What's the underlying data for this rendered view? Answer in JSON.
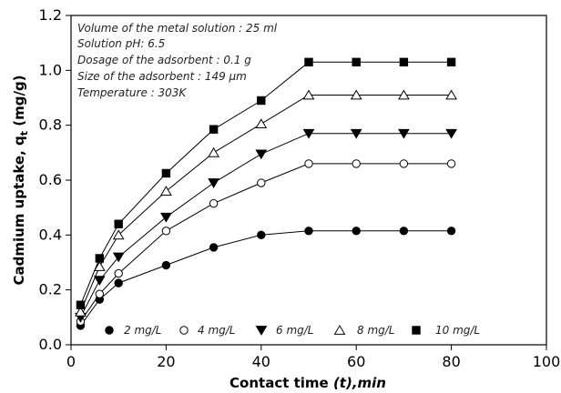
{
  "chart_data": {
    "type": "line",
    "xlabel_main": "Contact time ",
    "xlabel_italic": "(t),min",
    "ylabel_main": "Cadmium uptake, q",
    "ylabel_sub": "t",
    "ylabel_unit": " (mg/g)",
    "xlim": [
      0,
      100
    ],
    "ylim": [
      0.0,
      1.2
    ],
    "xticks": [
      "0",
      "20",
      "40",
      "60",
      "80",
      "100"
    ],
    "yticks": [
      "0.0",
      "0.2",
      "0.4",
      "0.6",
      "0.8",
      "1.0",
      "1.2"
    ],
    "annotations": [
      "Volume of the metal solution : 25 ml",
      "Solution pH: 6.5",
      "Dosage of the adsorbent : 0.1 g",
      "Size of the adsorbent : 149 μm",
      "Temperature : 303K"
    ],
    "x": [
      2,
      6,
      10,
      20,
      30,
      40,
      50,
      60,
      70,
      80
    ],
    "series": [
      {
        "name": "2 mg/L",
        "marker": "circle-filled",
        "values": [
          0.07,
          0.165,
          0.225,
          0.29,
          0.355,
          0.4,
          0.415,
          0.415,
          0.415,
          0.415
        ]
      },
      {
        "name": "4 mg/L",
        "marker": "circle-open",
        "values": [
          0.085,
          0.185,
          0.26,
          0.415,
          0.515,
          0.59,
          0.66,
          0.66,
          0.66,
          0.66
        ]
      },
      {
        "name": "6 mg/L",
        "marker": "triangle-down-filled",
        "values": [
          0.1,
          0.235,
          0.32,
          0.465,
          0.59,
          0.695,
          0.77,
          0.77,
          0.77,
          0.77
        ]
      },
      {
        "name": "8 mg/L",
        "marker": "triangle-up-open",
        "values": [
          0.12,
          0.285,
          0.4,
          0.56,
          0.7,
          0.805,
          0.91,
          0.91,
          0.91,
          0.91
        ]
      },
      {
        "name": "10 mg/L",
        "marker": "square-filled",
        "values": [
          0.145,
          0.315,
          0.44,
          0.625,
          0.785,
          0.89,
          1.03,
          1.03,
          1.03,
          1.03
        ]
      }
    ],
    "legend_position": "bottom-inside",
    "grid": false
  }
}
